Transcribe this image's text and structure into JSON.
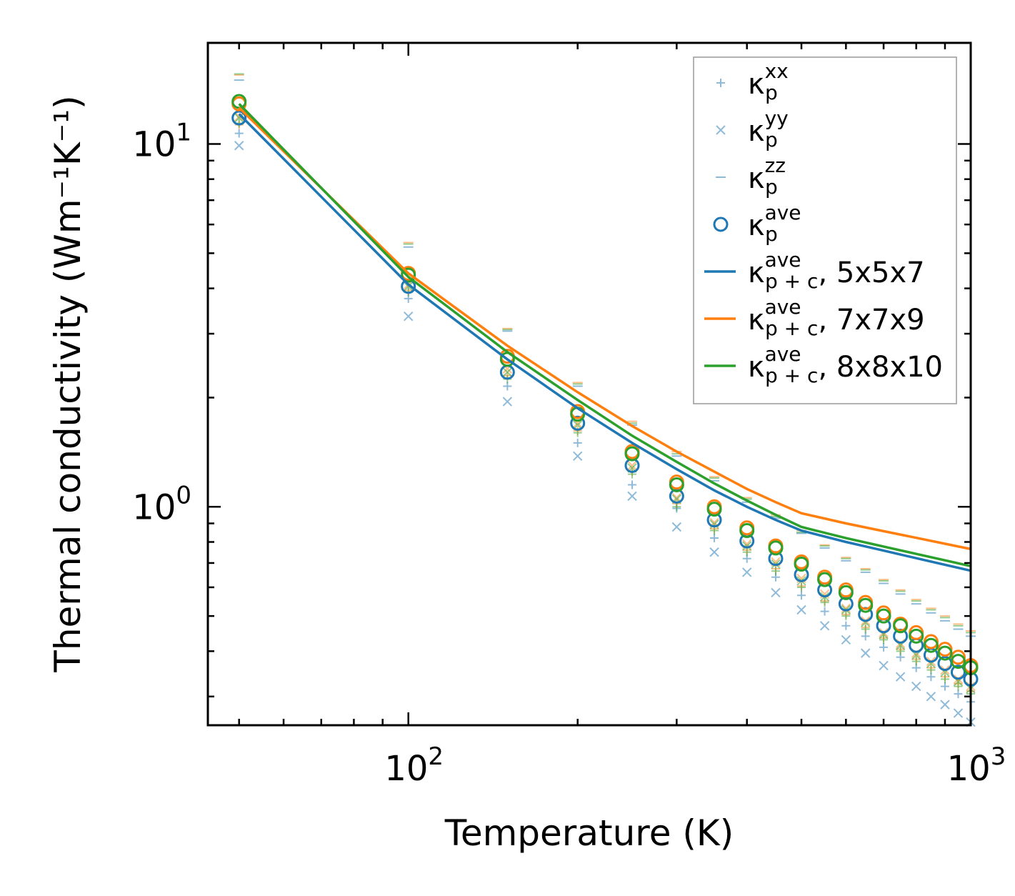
{
  "chart_data": {
    "type": "scatter",
    "title": "",
    "xlabel": "Temperature (K)",
    "ylabel": "Thermal conductivity (Wm⁻¹K⁻¹)",
    "xscale": "log",
    "yscale": "log",
    "xlim": [
      44,
      1000
    ],
    "ylim": [
      0.25,
      19
    ],
    "xticks": [
      {
        "value": 100,
        "base": "10",
        "exp": "2"
      },
      {
        "value": 1000,
        "base": "10",
        "exp": "3"
      }
    ],
    "yticks": [
      {
        "value": 1,
        "base": "10",
        "exp": "0"
      },
      {
        "value": 10,
        "base": "10",
        "exp": "1"
      }
    ],
    "colors": {
      "blue": "#1f77b4",
      "orange": "#ff7f0e",
      "green": "#2ca02c",
      "axis": "#000000"
    },
    "legend": {
      "position": "top-right",
      "entries": [
        {
          "marker": "plus",
          "color": "#1f77b4",
          "sym": "κ",
          "sup": "xx",
          "sub": "p",
          "suffix": ""
        },
        {
          "marker": "x",
          "color": "#1f77b4",
          "sym": "κ",
          "sup": "yy",
          "sub": "p",
          "suffix": ""
        },
        {
          "marker": "dash",
          "color": "#1f77b4",
          "sym": "κ",
          "sup": "zz",
          "sub": "p",
          "suffix": ""
        },
        {
          "marker": "circle",
          "color": "#1f77b4",
          "sym": "κ",
          "sup": "ave",
          "sub": "p",
          "suffix": ""
        },
        {
          "marker": "line",
          "color": "#1f77b4",
          "sym": "κ",
          "sup": "ave",
          "sub": "p + c",
          "suffix": ", 5x5x7"
        },
        {
          "marker": "line",
          "color": "#ff7f0e",
          "sym": "κ",
          "sup": "ave",
          "sub": "p + c",
          "suffix": ", 7x7x9"
        },
        {
          "marker": "line",
          "color": "#2ca02c",
          "sym": "κ",
          "sup": "ave",
          "sub": "p + c",
          "suffix": ", 8x8x10"
        }
      ]
    },
    "x_points": [
      50,
      100,
      150,
      200,
      250,
      300,
      350,
      400,
      450,
      500,
      550,
      600,
      650,
      700,
      750,
      800,
      850,
      900,
      950,
      1000
    ],
    "series": [
      {
        "name": "blue",
        "color": "#1f77b4",
        "kxx": [
          10.7,
          3.75,
          2.15,
          1.5,
          1.15,
          0.99,
          0.82,
          0.72,
          0.64,
          0.57,
          0.515,
          0.47,
          0.44,
          0.41,
          0.385,
          0.36,
          0.34,
          0.32,
          0.305,
          0.29
        ],
        "kyy": [
          9.9,
          3.35,
          1.95,
          1.38,
          1.07,
          0.88,
          0.75,
          0.66,
          0.58,
          0.52,
          0.47,
          0.43,
          0.395,
          0.365,
          0.34,
          0.32,
          0.3,
          0.285,
          0.27,
          0.255
        ],
        "kzz": [
          15.0,
          5.2,
          3.05,
          2.15,
          1.68,
          1.38,
          1.18,
          1.03,
          0.93,
          0.845,
          0.77,
          0.71,
          0.66,
          0.615,
          0.575,
          0.54,
          0.51,
          0.485,
          0.46,
          0.44
        ],
        "kave": [
          11.8,
          4.05,
          2.35,
          1.7,
          1.3,
          1.07,
          0.92,
          0.805,
          0.72,
          0.65,
          0.59,
          0.54,
          0.505,
          0.47,
          0.44,
          0.415,
          0.39,
          0.37,
          0.35,
          0.335
        ],
        "curve": [
          12.1,
          4.1,
          2.55,
          1.87,
          1.5,
          1.27,
          1.11,
          1.0,
          0.92,
          0.86,
          0.8
        ]
      },
      {
        "name": "orange",
        "color": "#ff7f0e",
        "kxx": [
          11.3,
          3.95,
          2.3,
          1.62,
          1.25,
          1.02,
          0.87,
          0.76,
          0.675,
          0.605,
          0.55,
          0.505,
          0.465,
          0.435,
          0.405,
          0.38,
          0.36,
          0.34,
          0.325,
          0.31
        ],
        "kyy": [
          11.9,
          4.1,
          2.4,
          1.7,
          1.3,
          1.06,
          0.905,
          0.79,
          0.705,
          0.635,
          0.575,
          0.525,
          0.485,
          0.45,
          0.42,
          0.395,
          0.375,
          0.355,
          0.335,
          0.32
        ],
        "kzz": [
          15.5,
          5.35,
          3.1,
          2.2,
          1.72,
          1.42,
          1.21,
          1.06,
          0.95,
          0.86,
          0.785,
          0.725,
          0.675,
          0.63,
          0.59,
          0.555,
          0.525,
          0.5,
          0.475,
          0.455
        ],
        "kave": [
          12.9,
          4.4,
          2.6,
          1.83,
          1.42,
          1.17,
          1.0,
          0.875,
          0.78,
          0.705,
          0.64,
          0.59,
          0.545,
          0.51,
          0.475,
          0.45,
          0.425,
          0.405,
          0.385,
          0.365
        ],
        "curve": [
          12.6,
          4.4,
          2.78,
          2.07,
          1.67,
          1.42,
          1.25,
          1.12,
          1.03,
          0.96,
          0.9
        ]
      },
      {
        "name": "green",
        "color": "#2ca02c",
        "kxx": [
          11.4,
          3.9,
          2.25,
          1.6,
          1.23,
          1.0,
          0.86,
          0.75,
          0.665,
          0.6,
          0.545,
          0.5,
          0.46,
          0.43,
          0.4,
          0.375,
          0.355,
          0.335,
          0.32,
          0.305
        ],
        "kyy": [
          11.8,
          4.05,
          2.35,
          1.68,
          1.28,
          1.05,
          0.895,
          0.78,
          0.695,
          0.625,
          0.565,
          0.52,
          0.48,
          0.445,
          0.415,
          0.39,
          0.37,
          0.35,
          0.33,
          0.315
        ],
        "kzz": [
          15.6,
          5.3,
          3.08,
          2.18,
          1.7,
          1.4,
          1.2,
          1.05,
          0.94,
          0.85,
          0.78,
          0.72,
          0.67,
          0.625,
          0.585,
          0.55,
          0.52,
          0.495,
          0.47,
          0.45
        ],
        "kave": [
          13.1,
          4.35,
          2.55,
          1.8,
          1.4,
          1.15,
          0.985,
          0.86,
          0.77,
          0.695,
          0.63,
          0.58,
          0.535,
          0.5,
          0.47,
          0.44,
          0.415,
          0.395,
          0.375,
          0.36
        ],
        "curve": [
          12.9,
          4.3,
          2.67,
          1.97,
          1.57,
          1.33,
          1.16,
          1.04,
          0.95,
          0.88,
          0.82
        ]
      }
    ],
    "curve_x": [
      50,
      100,
      150,
      200,
      250,
      300,
      350,
      400,
      450,
      500,
      600
    ]
  }
}
